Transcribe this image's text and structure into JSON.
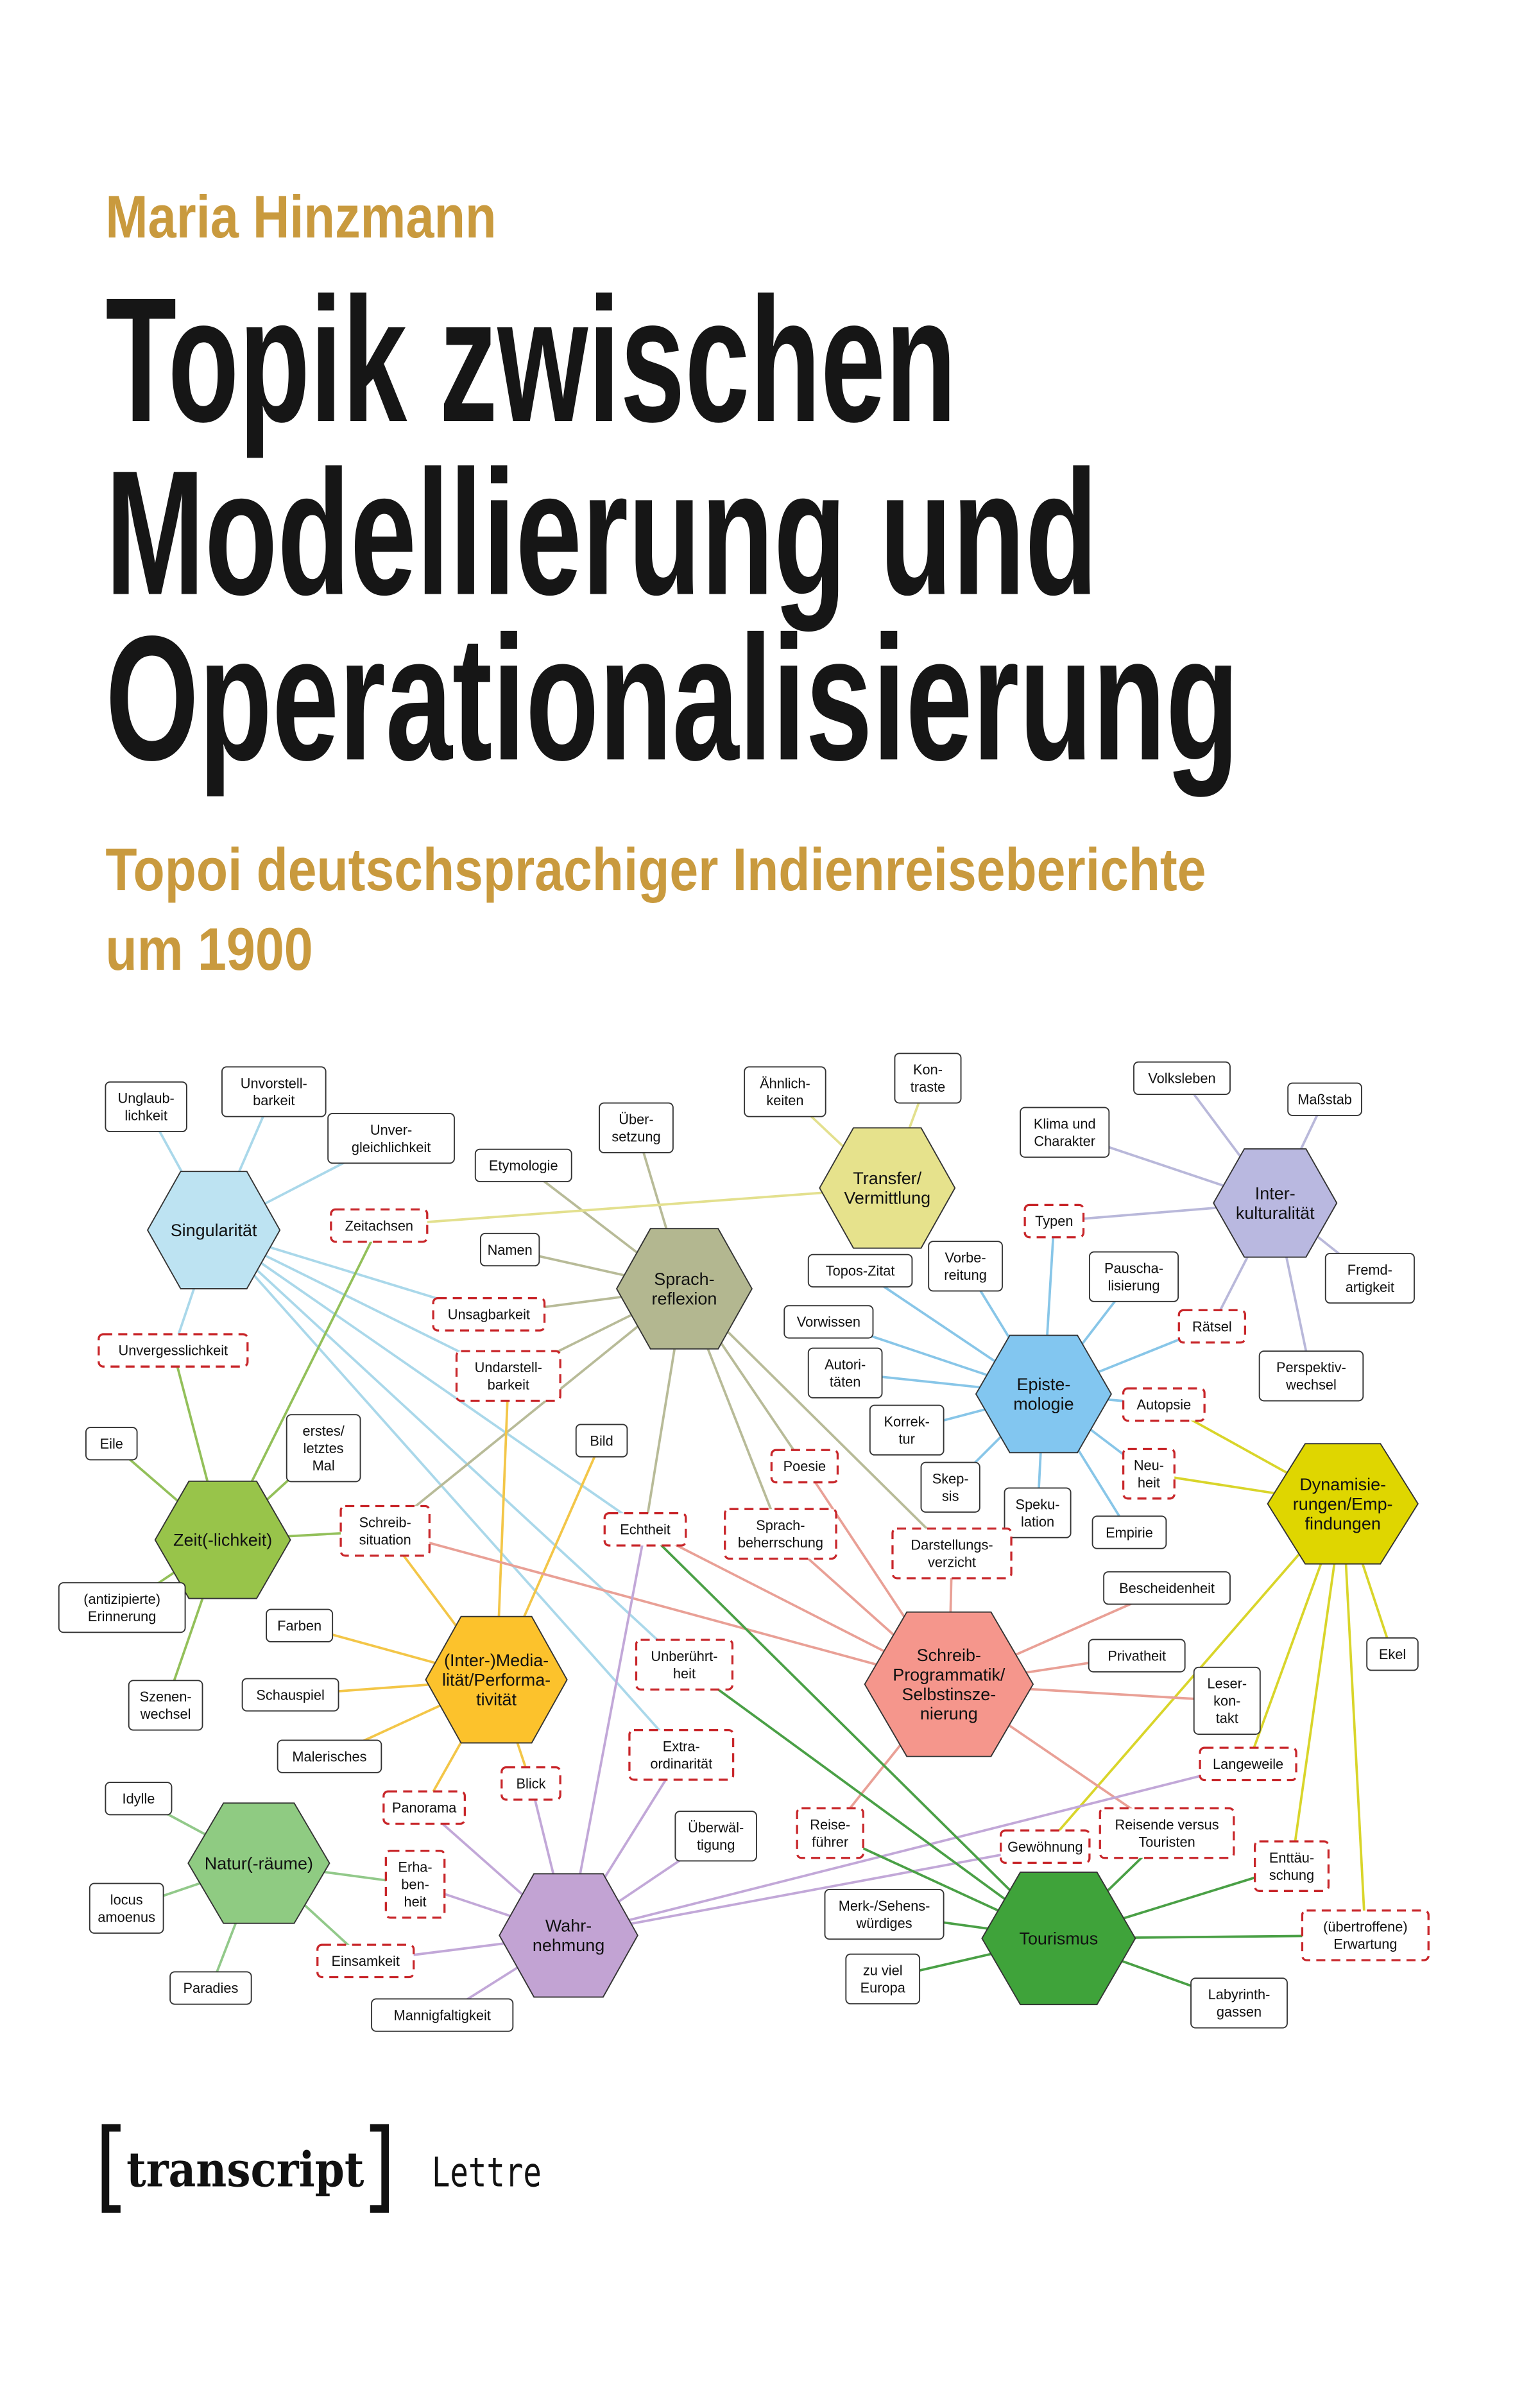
{
  "cover": {
    "author": "Maria Hinzmann",
    "title_lines": [
      "Topik zwischen",
      "Modellierung und",
      "Operationalisierung"
    ],
    "subtitle_lines": [
      "Topoi deutschsprachiger Indienreiseberichte",
      "um 1900"
    ],
    "publisher_logo": "transcript",
    "series": "Lettre",
    "accent_color": "#c99a3e"
  },
  "diagram": {
    "hubs": [
      {
        "id": "sing",
        "label_lines": [
          "Singularität"
        ],
        "fill": "#bde3f2",
        "line_color": "#aad8ea"
      },
      {
        "id": "sprach",
        "label_lines": [
          "Sprach-",
          "reflexion"
        ],
        "fill": "#b3b790",
        "line_color": "#b8bb98"
      },
      {
        "id": "trans",
        "label_lines": [
          "Transfer/",
          "Vermittlung"
        ],
        "fill": "#e6e28c",
        "line_color": "#e3e08e"
      },
      {
        "id": "inter",
        "label_lines": [
          "Inter-",
          "kulturalität"
        ],
        "fill": "#b9b8e0",
        "line_color": "#b9b8da"
      },
      {
        "id": "epi",
        "label_lines": [
          "Episte-",
          "mologie"
        ],
        "fill": "#82c6f0",
        "line_color": "#88c6e8"
      },
      {
        "id": "dyn",
        "label_lines": [
          "Dynamisie-",
          "rungen/Emp-",
          "findungen"
        ],
        "fill": "#dfd600",
        "line_color": "#d9d52a"
      },
      {
        "id": "zeit",
        "label_lines": [
          "Zeit(-lichkeit)"
        ],
        "fill": "#98c44a",
        "line_color": "#93c05a"
      },
      {
        "id": "med",
        "label_lines": [
          "(Inter-)Media-",
          "lität/Performa-",
          "tivität"
        ],
        "fill": "#fcc22c",
        "line_color": "#f3c648"
      },
      {
        "id": "schreib",
        "label_lines": [
          "Schreib-",
          "Programmatik/",
          "Selbstinsze-",
          "nierung"
        ],
        "fill": "#f5968c",
        "line_color": "#e9a096"
      },
      {
        "id": "natur",
        "label_lines": [
          "Natur(-räume)"
        ],
        "fill": "#8fcb82",
        "line_color": "#92c98a"
      },
      {
        "id": "wahr",
        "label_lines": [
          "Wahr-",
          "nehmung"
        ],
        "fill": "#c2a3d3",
        "line_color": "#c2a8d8"
      },
      {
        "id": "tour",
        "label_lines": [
          "Tourismus"
        ],
        "fill": "#3fa33a",
        "line_color": "#4aa046"
      }
    ],
    "topics": [
      {
        "id": "unglaub",
        "label_lines": [
          "Unglaub-",
          "lichkeit"
        ],
        "dashed": false
      },
      {
        "id": "unvorst",
        "label_lines": [
          "Unvorstell-",
          "barkeit"
        ],
        "dashed": false
      },
      {
        "id": "unvergl",
        "label_lines": [
          "Unver-",
          "gleichlichkeit"
        ],
        "dashed": false
      },
      {
        "id": "zeitachsen",
        "label_lines": [
          "Zeitachsen"
        ],
        "dashed": true
      },
      {
        "id": "unvergess",
        "label_lines": [
          "Unvergesslichkeit"
        ],
        "dashed": true
      },
      {
        "id": "etym",
        "label_lines": [
          "Etymologie"
        ],
        "dashed": false
      },
      {
        "id": "uebers",
        "label_lines": [
          "Über-",
          "setzung"
        ],
        "dashed": false
      },
      {
        "id": "namen",
        "label_lines": [
          "Namen"
        ],
        "dashed": false
      },
      {
        "id": "unsag",
        "label_lines": [
          "Unsagbarkeit"
        ],
        "dashed": true
      },
      {
        "id": "undarst",
        "label_lines": [
          "Undarstell-",
          "barkeit"
        ],
        "dashed": true
      },
      {
        "id": "aehnl",
        "label_lines": [
          "Ähnlich-",
          "keiten"
        ],
        "dashed": false
      },
      {
        "id": "kontr",
        "label_lines": [
          "Kon-",
          "traste"
        ],
        "dashed": false
      },
      {
        "id": "volks",
        "label_lines": [
          "Volksleben"
        ],
        "dashed": false
      },
      {
        "id": "mass",
        "label_lines": [
          "Maßstab"
        ],
        "dashed": false
      },
      {
        "id": "klima",
        "label_lines": [
          "Klima und",
          "Charakter"
        ],
        "dashed": false
      },
      {
        "id": "typen",
        "label_lines": [
          "Typen"
        ],
        "dashed": true
      },
      {
        "id": "fremd",
        "label_lines": [
          "Fremd-",
          "artigkeit"
        ],
        "dashed": false
      },
      {
        "id": "raetsel",
        "label_lines": [
          "Rätsel"
        ],
        "dashed": true
      },
      {
        "id": "persp",
        "label_lines": [
          "Perspektiv-",
          "wechsel"
        ],
        "dashed": false
      },
      {
        "id": "topos",
        "label_lines": [
          "Topos-Zitat"
        ],
        "dashed": false
      },
      {
        "id": "vorb",
        "label_lines": [
          "Vorbe-",
          "reitung"
        ],
        "dashed": false
      },
      {
        "id": "pausch",
        "label_lines": [
          "Pauscha-",
          "lisierung"
        ],
        "dashed": false
      },
      {
        "id": "vorw",
        "label_lines": [
          "Vorwissen"
        ],
        "dashed": false
      },
      {
        "id": "autor",
        "label_lines": [
          "Autori-",
          "täten"
        ],
        "dashed": false
      },
      {
        "id": "korr",
        "label_lines": [
          "Korrek-",
          "tur"
        ],
        "dashed": false
      },
      {
        "id": "autop",
        "label_lines": [
          "Autopsie"
        ],
        "dashed": true
      },
      {
        "id": "neu",
        "label_lines": [
          "Neu-",
          "heit"
        ],
        "dashed": true
      },
      {
        "id": "skep",
        "label_lines": [
          "Skep-",
          "sis"
        ],
        "dashed": false
      },
      {
        "id": "spek",
        "label_lines": [
          "Speku-",
          "lation"
        ],
        "dashed": false
      },
      {
        "id": "empirie",
        "label_lines": [
          "Empirie"
        ],
        "dashed": false
      },
      {
        "id": "eile",
        "label_lines": [
          "Eile"
        ],
        "dashed": false
      },
      {
        "id": "erstes",
        "label_lines": [
          "erstes/",
          "letztes",
          "Mal"
        ],
        "dashed": false
      },
      {
        "id": "schrsit",
        "label_lines": [
          "Schreib-",
          "situation"
        ],
        "dashed": true
      },
      {
        "id": "echt",
        "label_lines": [
          "Echtheit"
        ],
        "dashed": true
      },
      {
        "id": "poesie",
        "label_lines": [
          "Poesie"
        ],
        "dashed": true
      },
      {
        "id": "sprbeh",
        "label_lines": [
          "Sprach-",
          "beherrschung"
        ],
        "dashed": true
      },
      {
        "id": "darst",
        "label_lines": [
          "Darstellungs-",
          "verzicht"
        ],
        "dashed": true
      },
      {
        "id": "bild",
        "label_lines": [
          "Bild"
        ],
        "dashed": false
      },
      {
        "id": "erinn",
        "label_lines": [
          "(antizipierte)",
          "Erinnerung"
        ],
        "dashed": false
      },
      {
        "id": "szenen",
        "label_lines": [
          "Szenen-",
          "wechsel"
        ],
        "dashed": false
      },
      {
        "id": "farben",
        "label_lines": [
          "Farben"
        ],
        "dashed": false
      },
      {
        "id": "schausp",
        "label_lines": [
          "Schauspiel"
        ],
        "dashed": false
      },
      {
        "id": "maler",
        "label_lines": [
          "Malerisches"
        ],
        "dashed": false
      },
      {
        "id": "panor",
        "label_lines": [
          "Panorama"
        ],
        "dashed": true
      },
      {
        "id": "blick",
        "label_lines": [
          "Blick"
        ],
        "dashed": true
      },
      {
        "id": "unber",
        "label_lines": [
          "Unberührt-",
          "heit"
        ],
        "dashed": true
      },
      {
        "id": "extra",
        "label_lines": [
          "Extra-",
          "ordinarität"
        ],
        "dashed": true
      },
      {
        "id": "besch",
        "label_lines": [
          "Bescheidenheit"
        ],
        "dashed": false
      },
      {
        "id": "priv",
        "label_lines": [
          "Privatheit"
        ],
        "dashed": false
      },
      {
        "id": "leser",
        "label_lines": [
          "Leser-",
          "kon-",
          "takt"
        ],
        "dashed": false
      },
      {
        "id": "ekel",
        "label_lines": [
          "Ekel"
        ],
        "dashed": false
      },
      {
        "id": "lang",
        "label_lines": [
          "Langeweile"
        ],
        "dashed": true
      },
      {
        "id": "idylle",
        "label_lines": [
          "Idylle"
        ],
        "dashed": false
      },
      {
        "id": "locus",
        "label_lines": [
          "locus",
          "amoenus"
        ],
        "dashed": false
      },
      {
        "id": "parad",
        "label_lines": [
          "Paradies"
        ],
        "dashed": false
      },
      {
        "id": "erhab",
        "label_lines": [
          "Erha-",
          "ben-",
          "heit"
        ],
        "dashed": true
      },
      {
        "id": "einsam",
        "label_lines": [
          "Einsamkeit"
        ],
        "dashed": true
      },
      {
        "id": "mannig",
        "label_lines": [
          "Mannigfaltigkeit"
        ],
        "dashed": false
      },
      {
        "id": "ueberw",
        "label_lines": [
          "Überwäl-",
          "tigung"
        ],
        "dashed": false
      },
      {
        "id": "reisef",
        "label_lines": [
          "Reise-",
          "führer"
        ],
        "dashed": true
      },
      {
        "id": "gewoehn",
        "label_lines": [
          "Gewöhnung"
        ],
        "dashed": true
      },
      {
        "id": "reisende",
        "label_lines": [
          "Reisende versus",
          "Touristen"
        ],
        "dashed": true
      },
      {
        "id": "enttaeu",
        "label_lines": [
          "Enttäu-",
          "schung"
        ],
        "dashed": true
      },
      {
        "id": "erwart",
        "label_lines": [
          "(übertroffene)",
          "Erwartung"
        ],
        "dashed": true
      },
      {
        "id": "merk",
        "label_lines": [
          "Merk-/Sehens-",
          "würdiges"
        ],
        "dashed": false
      },
      {
        "id": "europa",
        "label_lines": [
          "zu viel",
          "Europa"
        ],
        "dashed": false
      },
      {
        "id": "labyr",
        "label_lines": [
          "Labyrinth-",
          "gassen"
        ],
        "dashed": false
      }
    ],
    "edges": {
      "sing": [
        "unglaub",
        "unvorst",
        "unvergl",
        "unvergess",
        "unsag",
        "undarst",
        "echt",
        "unber",
        "extra"
      ],
      "sprach": [
        "etym",
        "uebers",
        "namen",
        "unsag",
        "undarst",
        "schrsit",
        "echt",
        "poesie",
        "sprbeh",
        "darst"
      ],
      "trans": [
        "aehnl",
        "kontr",
        "zeitachsen"
      ],
      "inter": [
        "volks",
        "mass",
        "klima",
        "typen",
        "fremd",
        "raetsel",
        "persp"
      ],
      "epi": [
        "topos",
        "vorb",
        "pausch",
        "typen",
        "raetsel",
        "vorw",
        "autor",
        "korr",
        "autop",
        "neu",
        "skep",
        "spek",
        "empirie"
      ],
      "dyn": [
        "autop",
        "neu",
        "gewoehn",
        "lang",
        "enttaeu",
        "erwart",
        "ekel"
      ],
      "zeit": [
        "unvergess",
        "zeitachsen",
        "eile",
        "erstes",
        "schrsit",
        "erinn",
        "szenen"
      ],
      "med": [
        "schrsit",
        "undarst",
        "bild",
        "farben",
        "schausp",
        "maler",
        "panor",
        "blick"
      ],
      "schreib": [
        "schrsit",
        "echt",
        "poesie",
        "sprbeh",
        "darst",
        "besch",
        "priv",
        "leser",
        "reisef",
        "reisende"
      ],
      "natur": [
        "idylle",
        "locus",
        "parad",
        "erhab",
        "einsam"
      ],
      "wahr": [
        "panor",
        "blick",
        "echt",
        "extra",
        "ueberw",
        "erhab",
        "einsam",
        "mannig",
        "lang",
        "gewoehn"
      ],
      "tour": [
        "echt",
        "unber",
        "reisef",
        "reisende",
        "merk",
        "europa",
        "enttaeu",
        "erwart",
        "labyr"
      ]
    },
    "topic_border_color": "#333333",
    "dashed_border_color": "#c8262a"
  }
}
